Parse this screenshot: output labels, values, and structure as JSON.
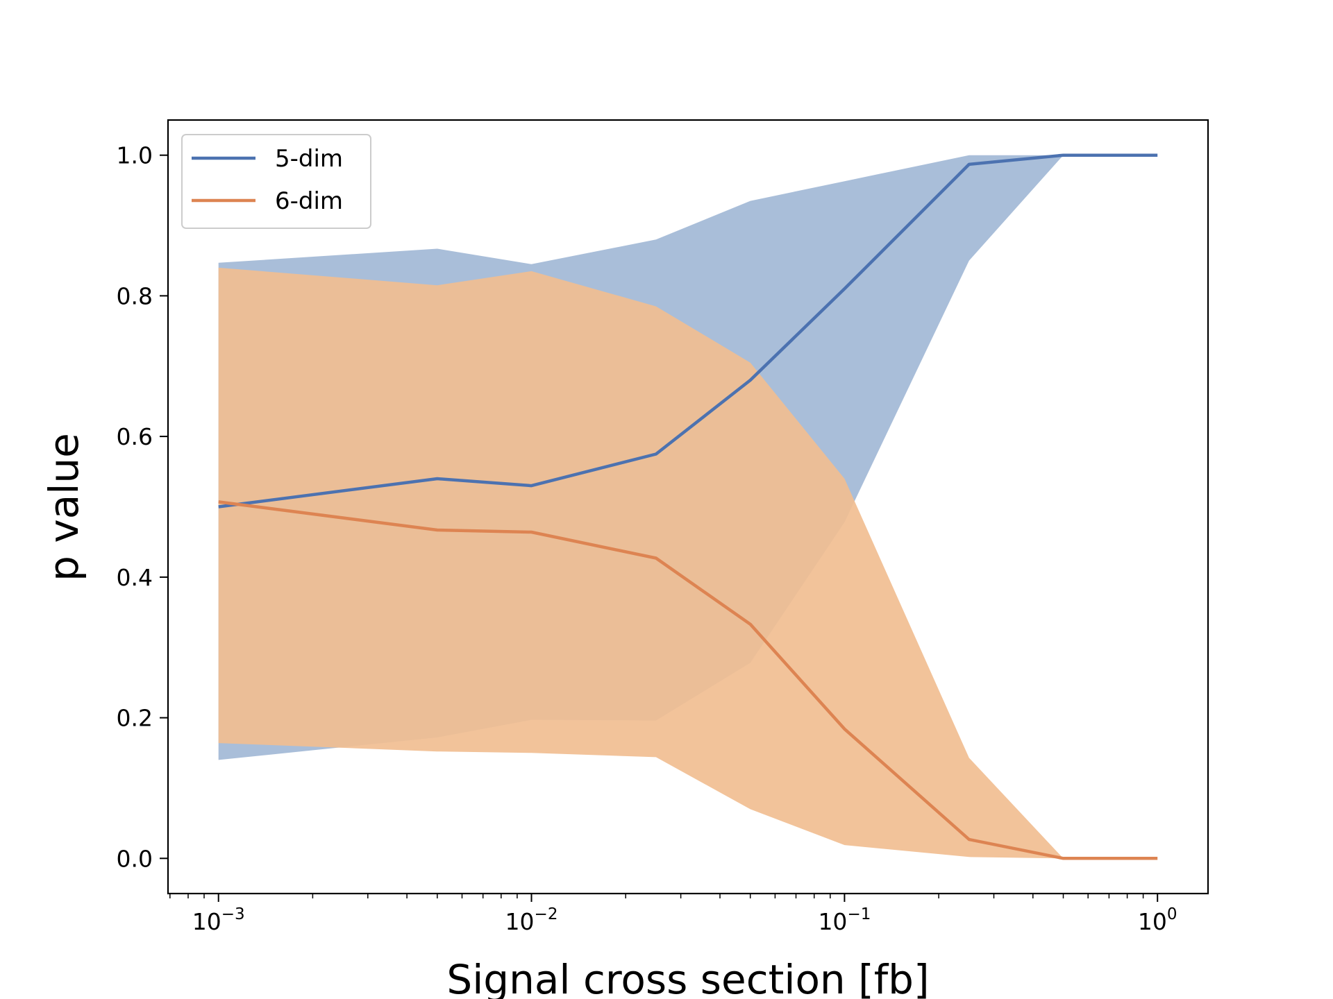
{
  "chart_data": {
    "type": "line",
    "xlabel": "Signal cross section [fb]",
    "ylabel": "p value",
    "xscale": "log",
    "xlim": [
      0.00069,
      1.45
    ],
    "ylim": [
      -0.05,
      1.05
    ],
    "grid": false,
    "legend_position": "top-left",
    "x": [
      0.001,
      0.005,
      0.01,
      0.025,
      0.05,
      0.1,
      0.25,
      0.5,
      1.0
    ],
    "x_ticks": [
      {
        "value": 0.001,
        "base": "10",
        "exp": "−3"
      },
      {
        "value": 0.01,
        "base": "10",
        "exp": "−2"
      },
      {
        "value": 0.1,
        "base": "10",
        "exp": "−1"
      },
      {
        "value": 1.0,
        "base": "10",
        "exp": "0"
      }
    ],
    "y_ticks": [
      {
        "value": 0.0,
        "label": "0.0"
      },
      {
        "value": 0.2,
        "label": "0.2"
      },
      {
        "value": 0.4,
        "label": "0.4"
      },
      {
        "value": 0.6,
        "label": "0.6"
      },
      {
        "value": 0.8,
        "label": "0.8"
      },
      {
        "value": 1.0,
        "label": "1.0"
      }
    ],
    "series": [
      {
        "name": "5-dim",
        "color": "#4c72b0",
        "band_color": "#a2b8d6",
        "values": [
          0.5,
          0.54,
          0.53,
          0.575,
          0.68,
          0.81,
          0.987,
          1.0,
          1.0
        ],
        "lower": [
          0.14,
          0.172,
          0.197,
          0.196,
          0.278,
          0.478,
          0.85,
          1.0,
          1.0
        ],
        "upper": [
          0.847,
          0.867,
          0.845,
          0.88,
          0.935,
          0.963,
          1.0,
          1.0,
          1.0
        ]
      },
      {
        "name": "6-dim",
        "color": "#dd8452",
        "band_color": "#f1be91",
        "values": [
          0.507,
          0.467,
          0.464,
          0.427,
          0.333,
          0.184,
          0.027,
          0.0,
          0.0
        ],
        "lower": [
          0.164,
          0.152,
          0.15,
          0.144,
          0.07,
          0.019,
          0.002,
          0.0,
          0.0
        ],
        "upper": [
          0.84,
          0.815,
          0.835,
          0.785,
          0.705,
          0.54,
          0.143,
          0.0,
          0.0
        ]
      }
    ]
  }
}
